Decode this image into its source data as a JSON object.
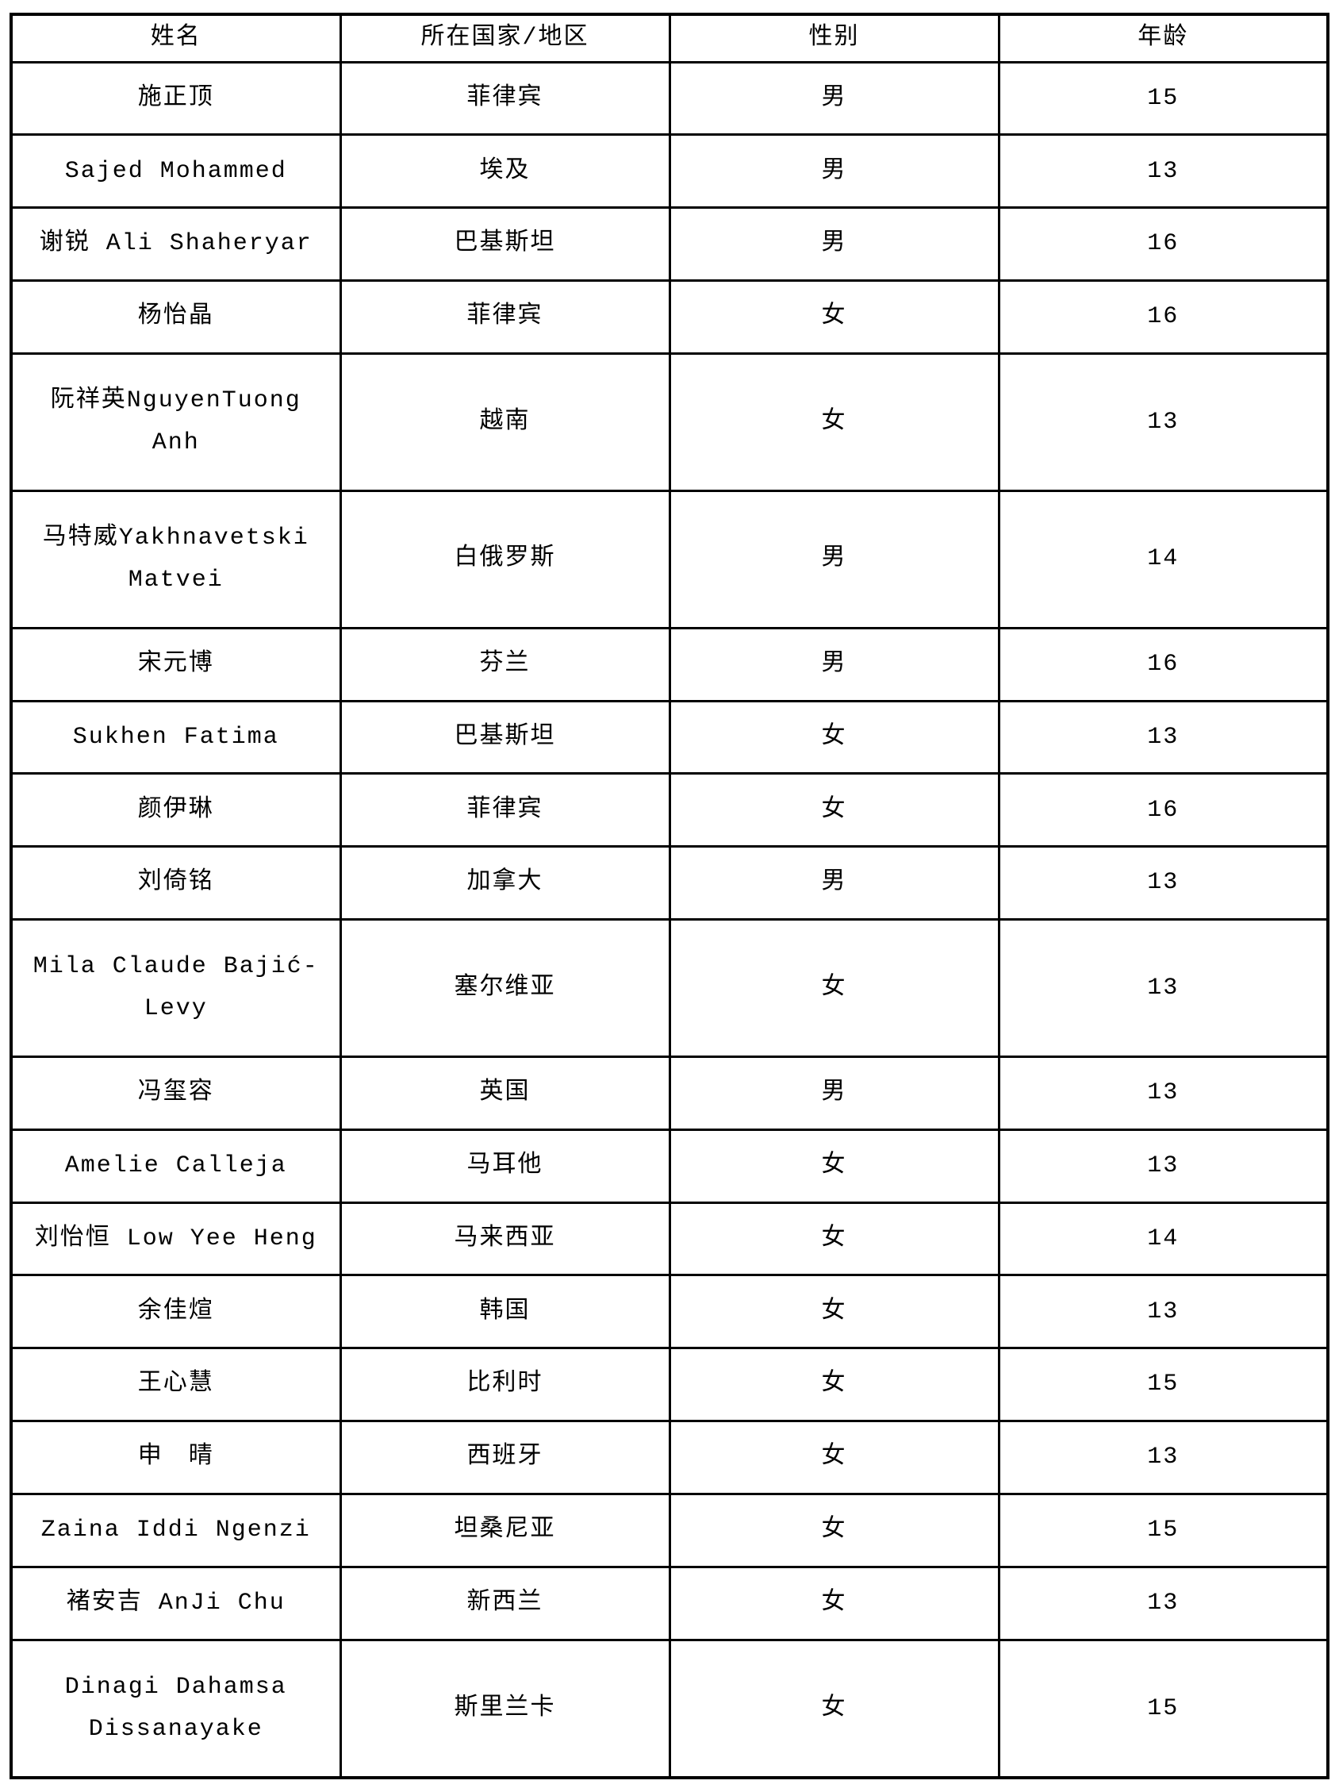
{
  "colors": {
    "background": "#ffffff",
    "border": "#000000",
    "text": "#000000"
  },
  "table": {
    "headers": {
      "name": "姓名",
      "country": "所在国家/地区",
      "gender": "性别",
      "age": "年龄"
    },
    "rows": [
      {
        "name": "施正顶",
        "country": "菲律宾",
        "gender": "男",
        "age": "15"
      },
      {
        "name": "Sajed Mohammed",
        "country": "埃及",
        "gender": "男",
        "age": "13"
      },
      {
        "name": "谢锐 Ali Shaheryar",
        "country": "巴基斯坦",
        "gender": "男",
        "age": "16"
      },
      {
        "name": "杨怡晶",
        "country": "菲律宾",
        "gender": "女",
        "age": "16"
      },
      {
        "name": "阮祥英NguyenTuong Anh",
        "country": "越南",
        "gender": "女",
        "age": "13"
      },
      {
        "name": "马特威Yakhnavetski Matvei",
        "country": "白俄罗斯",
        "gender": "男",
        "age": "14"
      },
      {
        "name": "宋元博",
        "country": "芬兰",
        "gender": "男",
        "age": "16"
      },
      {
        "name": "Sukhen Fatima",
        "country": "巴基斯坦",
        "gender": "女",
        "age": "13"
      },
      {
        "name": "颜伊琳",
        "country": "菲律宾",
        "gender": "女",
        "age": "16"
      },
      {
        "name": "刘倚铭",
        "country": "加拿大",
        "gender": "男",
        "age": "13"
      },
      {
        "name": "Mila Claude Bajić-Levy",
        "country": "塞尔维亚",
        "gender": "女",
        "age": "13"
      },
      {
        "name": "冯玺容",
        "country": "英国",
        "gender": "男",
        "age": "13"
      },
      {
        "name": "Amelie Calleja",
        "country": "马耳他",
        "gender": "女",
        "age": "13"
      },
      {
        "name": "刘怡恒 Low Yee Heng",
        "country": "马来西亚",
        "gender": "女",
        "age": "14"
      },
      {
        "name": "余佳煊",
        "country": "韩国",
        "gender": "女",
        "age": "13"
      },
      {
        "name": "王心慧",
        "country": "比利时",
        "gender": "女",
        "age": "15"
      },
      {
        "name": "申　晴",
        "country": "西班牙",
        "gender": "女",
        "age": "13"
      },
      {
        "name": "Zaina Iddi Ngenzi",
        "country": "坦桑尼亚",
        "gender": "女",
        "age": "15"
      },
      {
        "name": "褚安吉 AnJi Chu",
        "country": "新西兰",
        "gender": "女",
        "age": "13"
      },
      {
        "name": "Dinagi Dahamsa Dissanayake",
        "country": "斯里兰卡",
        "gender": "女",
        "age": "15"
      }
    ]
  }
}
